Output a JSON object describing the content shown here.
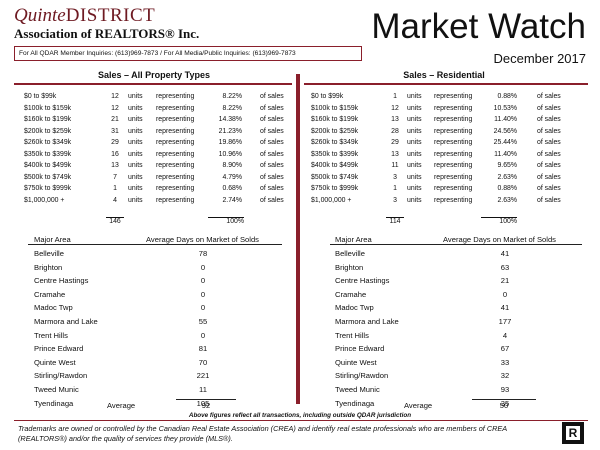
{
  "header": {
    "logo_quinte": "Quinte",
    "logo_district": "DISTRICT",
    "logo_association": "Association of REALTORS® Inc.",
    "title": "Market Watch",
    "subtitle": "December 2017",
    "inquiry_text": "For All QDAR Member Inquiries: (613)969-7873 / For All Media/Public Inquiries: (613)969-7873"
  },
  "all_property": {
    "title": "Sales – All Property Types",
    "rows": [
      {
        "range": "$0 to $99k",
        "count": "12",
        "units": "units",
        "rep": "representing",
        "pct": "8.22%",
        "of": "of sales"
      },
      {
        "range": "$100k to $159k",
        "count": "12",
        "units": "units",
        "rep": "representing",
        "pct": "8.22%",
        "of": "of sales"
      },
      {
        "range": "$160k to $199k",
        "count": "21",
        "units": "units",
        "rep": "representing",
        "pct": "14.38%",
        "of": "of sales"
      },
      {
        "range": "$200k to $259k",
        "count": "31",
        "units": "units",
        "rep": "representing",
        "pct": "21.23%",
        "of": "of sales"
      },
      {
        "range": "$260k to $349k",
        "count": "29",
        "units": "units",
        "rep": "representing",
        "pct": "19.86%",
        "of": "of sales"
      },
      {
        "range": "$350k to $399k",
        "count": "16",
        "units": "units",
        "rep": "representing",
        "pct": "10.96%",
        "of": "of sales"
      },
      {
        "range": "$400k to $499k",
        "count": "13",
        "units": "units",
        "rep": "representing",
        "pct": "8.90%",
        "of": "of sales"
      },
      {
        "range": "$500k to $749k",
        "count": "7",
        "units": "units",
        "rep": "representing",
        "pct": "4.79%",
        "of": "of sales"
      },
      {
        "range": "$750k to $999k",
        "count": "1",
        "units": "units",
        "rep": "representing",
        "pct": "0.68%",
        "of": "of sales"
      },
      {
        "range": "$1,000,000 +",
        "count": "4",
        "units": "units",
        "rep": "representing",
        "pct": "2.74%",
        "of": "of sales"
      }
    ],
    "total_count": "146",
    "total_pct": "100%",
    "days": {
      "header_area": "Major Area",
      "header_days": "Average Days on Market of Solds",
      "rows": [
        {
          "area": "Belleville",
          "value": "78"
        },
        {
          "area": "Brighton",
          "value": "0"
        },
        {
          "area": "Centre Hastings",
          "value": "0"
        },
        {
          "area": "Cramahe",
          "value": "0"
        },
        {
          "area": "Madoc Twp",
          "value": "0"
        },
        {
          "area": "Marmora and Lake",
          "value": "55"
        },
        {
          "area": "Trent Hills",
          "value": "0"
        },
        {
          "area": "Prince Edward",
          "value": "81"
        },
        {
          "area": "Quinte West",
          "value": "70"
        },
        {
          "area": "Stirling/Rawdon",
          "value": "221"
        },
        {
          "area": "Tweed Munic",
          "value": "11"
        },
        {
          "area": "Tyendinaga",
          "value": "105"
        }
      ],
      "average_label": "Average",
      "average_value": "92"
    }
  },
  "residential": {
    "title": "Sales – Residential",
    "rows": [
      {
        "range": "$0 to $99k",
        "count": "1",
        "units": "units",
        "rep": "representing",
        "pct": "0.88%",
        "of": "of sales"
      },
      {
        "range": "$100k to $159k",
        "count": "12",
        "units": "units",
        "rep": "representing",
        "pct": "10.53%",
        "of": "of sales"
      },
      {
        "range": "$160k to $199k",
        "count": "13",
        "units": "units",
        "rep": "representing",
        "pct": "11.40%",
        "of": "of sales"
      },
      {
        "range": "$200k to $259k",
        "count": "28",
        "units": "units",
        "rep": "representing",
        "pct": "24.56%",
        "of": "of sales"
      },
      {
        "range": "$260k to $349k",
        "count": "29",
        "units": "units",
        "rep": "representing",
        "pct": "25.44%",
        "of": "of sales"
      },
      {
        "range": "$350k to $399k",
        "count": "13",
        "units": "units",
        "rep": "representing",
        "pct": "11.40%",
        "of": "of sales"
      },
      {
        "range": "$400k to $499k",
        "count": "11",
        "units": "units",
        "rep": "representing",
        "pct": "9.65%",
        "of": "of sales"
      },
      {
        "range": "$500k to $749k",
        "count": "3",
        "units": "units",
        "rep": "representing",
        "pct": "2.63%",
        "of": "of sales"
      },
      {
        "range": "$750k to $999k",
        "count": "1",
        "units": "units",
        "rep": "representing",
        "pct": "0.88%",
        "of": "of sales"
      },
      {
        "range": "$1,000,000 +",
        "count": "3",
        "units": "units",
        "rep": "representing",
        "pct": "2.63%",
        "of": "of sales"
      }
    ],
    "total_count": "114",
    "total_pct": "100%",
    "days": {
      "header_area": "Major Area",
      "header_days": "Average Days on Market of Solds",
      "rows": [
        {
          "area": "Belleville",
          "value": "41"
        },
        {
          "area": "Brighton",
          "value": "63"
        },
        {
          "area": "Centre Hastings",
          "value": "21"
        },
        {
          "area": "Cramahe",
          "value": "0"
        },
        {
          "area": "Madoc Twp",
          "value": "41"
        },
        {
          "area": "Marmora and Lake",
          "value": "177"
        },
        {
          "area": "Trent Hills",
          "value": "4"
        },
        {
          "area": "Prince Edward",
          "value": "67"
        },
        {
          "area": "Quinte West",
          "value": "33"
        },
        {
          "area": "Stirling/Rawdon",
          "value": "32"
        },
        {
          "area": "Tweed Munic",
          "value": "93"
        },
        {
          "area": "Tyendinaga",
          "value": "35"
        }
      ],
      "average_label": "Average",
      "average_value": "50"
    }
  },
  "note": "Above figures reflect all transactions, including outside QDAR jurisdiction",
  "footer": {
    "trademark_text": "Trademarks are owned or controlled by the Canadian Real Estate Association (CREA) and identify real estate professionals who are members of CREA (REALTORS®) and/or the quality of services they provide (MLS®).",
    "realtor_logo_letter": "R"
  },
  "colors": {
    "accent": "#8a1f2b",
    "logo_text": "#6e1a22"
  }
}
